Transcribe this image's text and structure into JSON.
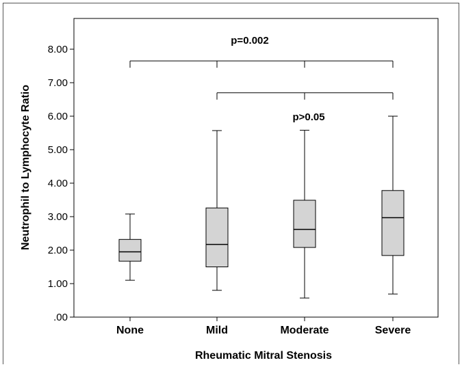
{
  "chart_data": {
    "type": "boxplot",
    "xlabel": "Rheumatic Mitral Stenosis",
    "ylabel": "Neutrophil to Lymphocyte Ratio",
    "ylim": [
      0,
      8.8
    ],
    "yticks": [
      ".00",
      "1.00",
      "2.00",
      "3.00",
      "4.00",
      "5.00",
      "6.00",
      "7.00",
      "8.00"
    ],
    "categories": [
      "None",
      "Mild",
      "Moderate",
      "Severe"
    ],
    "boxes": [
      {
        "category": "None",
        "min": 1.1,
        "q1": 1.67,
        "median": 1.95,
        "q3": 2.32,
        "max": 3.08
      },
      {
        "category": "Mild",
        "min": 0.8,
        "q1": 1.5,
        "median": 2.17,
        "q3": 3.26,
        "max": 5.57
      },
      {
        "category": "Moderate",
        "min": 0.57,
        "q1": 2.08,
        "median": 2.62,
        "q3": 3.49,
        "max": 5.58
      },
      {
        "category": "Severe",
        "min": 0.69,
        "q1": 1.84,
        "median": 2.97,
        "q3": 3.78,
        "max": 6.0
      }
    ],
    "brackets": [
      {
        "label": "p=0.002",
        "categories": [
          "None",
          "Mild",
          "Moderate",
          "Severe"
        ],
        "y": 7.65
      },
      {
        "label": "p>0.05",
        "categories": [
          "Mild",
          "Moderate",
          "Severe"
        ],
        "y": 6.7
      }
    ],
    "colors": {
      "box_fill": "#d4d4d4",
      "stroke": "#000000"
    }
  }
}
